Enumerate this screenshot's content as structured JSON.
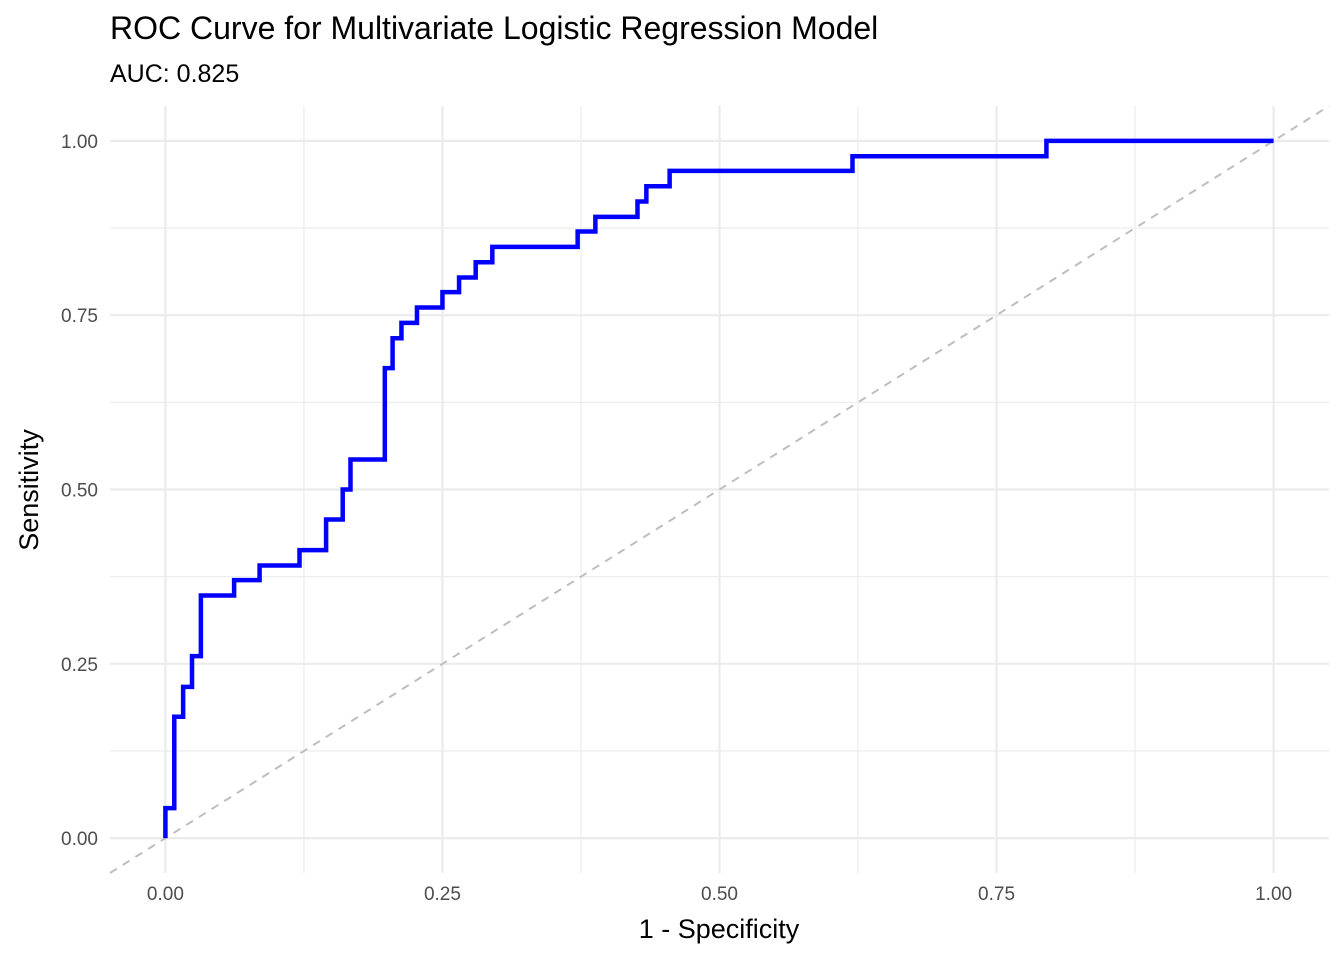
{
  "chart_data": {
    "type": "line",
    "title": "ROC Curve for Multivariate Logistic Regression Model",
    "subtitle": "AUC: 0.825",
    "xlabel": "1 - Specificity",
    "ylabel": "Sensitivity",
    "xlim": [
      -0.05,
      1.05
    ],
    "ylim": [
      -0.05,
      1.05
    ],
    "x_ticks": [
      0.0,
      0.25,
      0.5,
      0.75,
      1.0
    ],
    "x_tick_labels": [
      "0.00",
      "0.25",
      "0.50",
      "0.75",
      "1.00"
    ],
    "y_ticks": [
      0.0,
      0.25,
      0.5,
      0.75,
      1.0
    ],
    "y_tick_labels": [
      "0.00",
      "0.25",
      "0.50",
      "0.75",
      "1.00"
    ],
    "grid": true,
    "legend": "none",
    "series": [
      {
        "color": "#0000ff",
        "style": "step",
        "x": [
          0.0,
          0.0,
          0.008,
          0.008,
          0.016,
          0.016,
          0.024,
          0.024,
          0.032,
          0.032,
          0.062,
          0.062,
          0.085,
          0.085,
          0.121,
          0.121,
          0.145,
          0.145,
          0.16,
          0.16,
          0.167,
          0.167,
          0.198,
          0.198,
          0.205,
          0.205,
          0.213,
          0.213,
          0.227,
          0.227,
          0.25,
          0.25,
          0.265,
          0.265,
          0.28,
          0.28,
          0.295,
          0.295,
          0.372,
          0.372,
          0.388,
          0.388,
          0.426,
          0.426,
          0.434,
          0.434,
          0.455,
          0.455,
          0.62,
          0.62,
          0.795,
          0.795,
          1.0
        ],
        "y": [
          0.0,
          0.043,
          0.043,
          0.174,
          0.174,
          0.217,
          0.217,
          0.261,
          0.261,
          0.348,
          0.348,
          0.37,
          0.37,
          0.391,
          0.391,
          0.413,
          0.413,
          0.457,
          0.457,
          0.5,
          0.5,
          0.543,
          0.543,
          0.674,
          0.674,
          0.717,
          0.717,
          0.739,
          0.739,
          0.761,
          0.761,
          0.783,
          0.783,
          0.804,
          0.804,
          0.826,
          0.826,
          0.848,
          0.848,
          0.87,
          0.87,
          0.891,
          0.891,
          0.913,
          0.913,
          0.935,
          0.935,
          0.957,
          0.957,
          0.978,
          0.978,
          1.0,
          1.0
        ]
      }
    ],
    "reference_line": {
      "x": [
        -0.05,
        1.05
      ],
      "y": [
        -0.05,
        1.05
      ],
      "color": "#bebebe",
      "style": "dashed"
    }
  }
}
